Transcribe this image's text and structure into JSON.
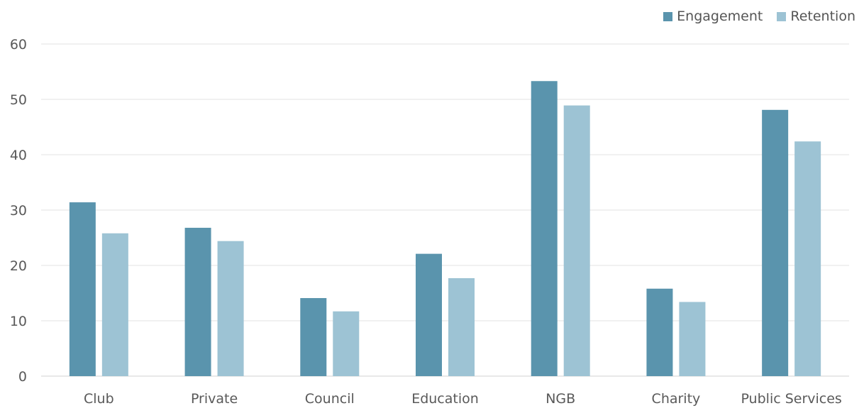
{
  "chart_data": {
    "type": "bar",
    "title": "",
    "xlabel": "",
    "ylabel": "",
    "categories": [
      "Club",
      "Private",
      "Council",
      "Education",
      "NGB",
      "Charity",
      "Public Services"
    ],
    "series": [
      {
        "name": "Engagement",
        "color": "#5a94ad",
        "values": [
          31.4,
          26.8,
          14.1,
          22.1,
          53.3,
          15.8,
          48.1
        ]
      },
      {
        "name": "Retention",
        "color": "#9dc3d4",
        "values": [
          25.8,
          24.4,
          11.7,
          17.7,
          48.9,
          13.4,
          42.4
        ]
      }
    ],
    "ylim": [
      0,
      60
    ],
    "yticks": [
      0,
      10,
      20,
      30,
      40,
      50,
      60
    ],
    "grid": true,
    "legend_position": "top-right"
  }
}
